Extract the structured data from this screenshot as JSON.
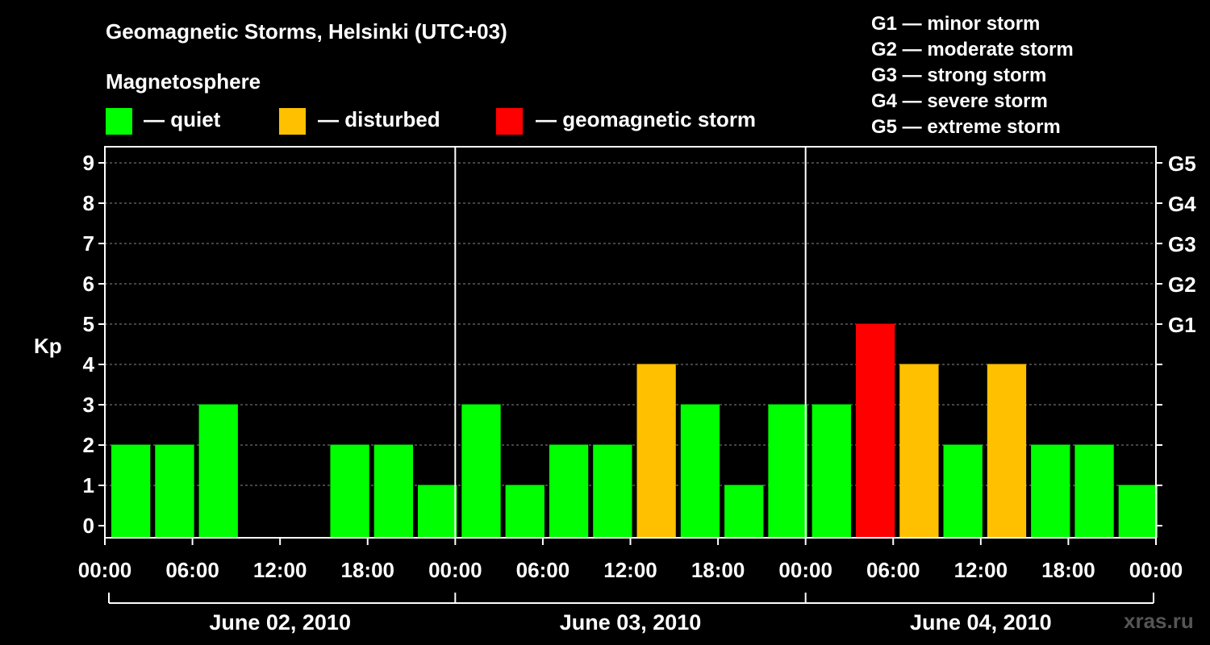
{
  "title": "Geomagnetic Storms, Helsinki (UTC+03)",
  "subtitle": "Magnetosphere",
  "legend": [
    {
      "label": "— quiet",
      "color": "#00ff00"
    },
    {
      "label": "— disturbed",
      "color": "#ffc000"
    },
    {
      "label": "— geomagnetic storm",
      "color": "#ff0000"
    }
  ],
  "g_scale": [
    "G1 — minor storm",
    "G2 — moderate storm",
    "G3 — strong storm",
    "G4 — severe storm",
    "G5 — extreme storm"
  ],
  "watermark": "xras.ru",
  "chart_data": {
    "type": "bar",
    "ylabel": "Kp",
    "ylim": [
      0,
      9
    ],
    "y_ticks": [
      "0",
      "1",
      "2",
      "3",
      "4",
      "5",
      "6",
      "7",
      "8",
      "9"
    ],
    "right_ticks": [
      {
        "kp": 5,
        "label": "G1"
      },
      {
        "kp": 6,
        "label": "G2"
      },
      {
        "kp": 7,
        "label": "G3"
      },
      {
        "kp": 8,
        "label": "G4"
      },
      {
        "kp": 9,
        "label": "G5"
      }
    ],
    "x_tick_labels": [
      "00:00",
      "06:00",
      "12:00",
      "18:00",
      "00:00",
      "06:00",
      "12:00",
      "18:00",
      "00:00",
      "06:00",
      "12:00",
      "18:00",
      "00:00"
    ],
    "days": [
      "June 02, 2010",
      "June 03, 2010",
      "June 04, 2010"
    ],
    "bars_per_day": 8,
    "values": [
      2,
      2,
      3,
      0,
      0,
      2,
      2,
      1,
      3,
      1,
      2,
      2,
      4,
      3,
      1,
      3,
      3,
      5,
      4,
      2,
      4,
      2,
      2,
      1
    ],
    "colors": {
      "quiet": "#00ff00",
      "disturbed": "#ffc000",
      "storm": "#ff0000"
    },
    "thresholds": {
      "disturbed": 4,
      "storm": 5
    },
    "grid": true
  }
}
